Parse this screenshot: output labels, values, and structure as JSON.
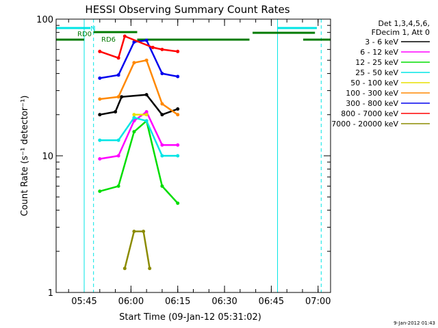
{
  "chart_data": {
    "type": "line",
    "title": "HESSI Observing Summary Count Rates",
    "xlabel": "Start Time (09-Jan-12 05:31:02)",
    "ylabel": "Count Rate (s⁻¹ detector⁻¹)",
    "yscale": "log",
    "ylim": [
      1,
      100
    ],
    "xlim_minutes": [
      5.0,
      93.0
    ],
    "x_ticks": [
      "05:45",
      "06:00",
      "06:15",
      "06:30",
      "06:45",
      "07:00"
    ],
    "y_ticks": [
      "1",
      "10",
      "100"
    ],
    "timestamp": "9-Jan-2012 01:43",
    "legend_header": [
      "Det 1,3,4,5,6,",
      "FDecim 1, Att 0"
    ],
    "legend_position": "right",
    "markers": {
      "n_label": "N",
      "rd0_label": "RD0",
      "rd6_label": "RD6",
      "night_color": "#00e5e5",
      "rd0_color": "#007a00",
      "rd6_color": "#007a00"
    },
    "series": [
      {
        "name": "3 - 6 keV",
        "color": "#000000",
        "values": [
          [
            19,
            20
          ],
          [
            24,
            21
          ],
          [
            26,
            27
          ],
          [
            34,
            28
          ],
          [
            39,
            20
          ],
          [
            44,
            22
          ]
        ]
      },
      {
        "name": "6 - 12 keV",
        "color": "#ff00ff",
        "values": [
          [
            19,
            9.5
          ],
          [
            25,
            10
          ],
          [
            30,
            18
          ],
          [
            34,
            21
          ],
          [
            39,
            12
          ],
          [
            44,
            12
          ]
        ]
      },
      {
        "name": "12 - 25 keV",
        "color": "#00dd00",
        "values": [
          [
            19,
            5.5
          ],
          [
            25,
            6
          ],
          [
            30,
            15
          ],
          [
            34,
            18
          ],
          [
            39,
            6
          ],
          [
            44,
            4.5
          ]
        ]
      },
      {
        "name": "25 - 50 keV",
        "color": "#00e5e5",
        "values": [
          [
            19,
            13
          ],
          [
            25,
            13
          ],
          [
            30,
            19
          ],
          [
            34,
            18
          ],
          [
            39,
            10
          ],
          [
            44,
            10
          ]
        ]
      },
      {
        "name": "50 - 100 keV",
        "color": "#e8e000",
        "values": [
          [
            30,
            20
          ],
          [
            34,
            20
          ]
        ]
      },
      {
        "name": "100 - 300 keV",
        "color": "#ff8800",
        "values": [
          [
            19,
            26
          ],
          [
            25,
            27
          ],
          [
            30,
            48
          ],
          [
            34,
            50
          ],
          [
            39,
            24
          ],
          [
            44,
            20
          ]
        ]
      },
      {
        "name": "300 - 800 keV",
        "color": "#0000ee",
        "values": [
          [
            19,
            37
          ],
          [
            25,
            39
          ],
          [
            30,
            68
          ],
          [
            34,
            70
          ],
          [
            39,
            40
          ],
          [
            44,
            38
          ]
        ]
      },
      {
        "name": "800 - 7000 keV",
        "color": "#ff0000",
        "values": [
          [
            19,
            58
          ],
          [
            25,
            52
          ],
          [
            27,
            75
          ],
          [
            36,
            62
          ],
          [
            39,
            60
          ],
          [
            44,
            58
          ]
        ]
      },
      {
        "name": "7000 - 20000 keV",
        "color": "#8b8b00",
        "values": [
          [
            27,
            1.5
          ],
          [
            30,
            2.8
          ],
          [
            33,
            2.8
          ],
          [
            35,
            1.5
          ]
        ]
      }
    ]
  }
}
